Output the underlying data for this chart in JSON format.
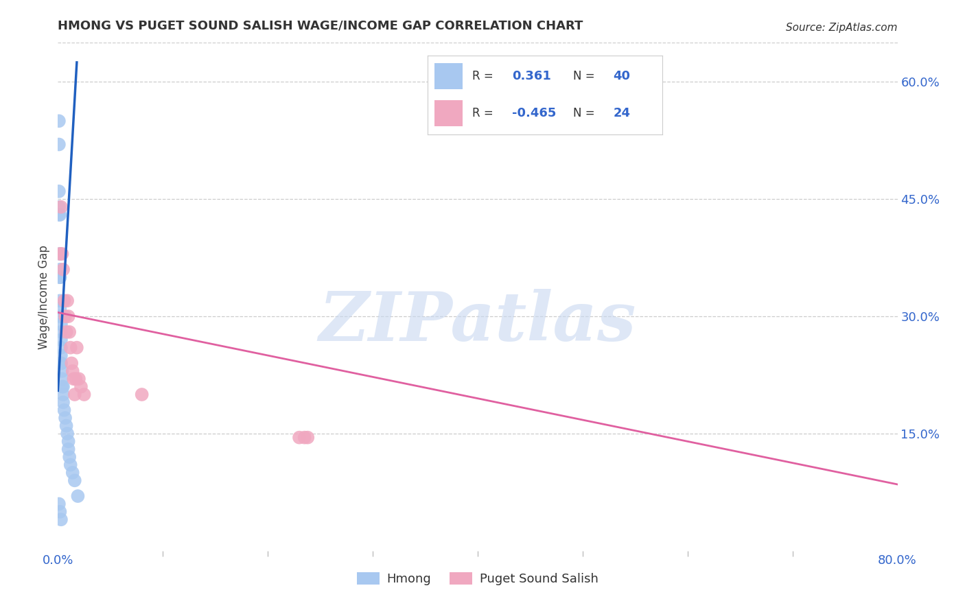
{
  "title": "HMONG VS PUGET SOUND SALISH WAGE/INCOME GAP CORRELATION CHART",
  "source": "Source: ZipAtlas.com",
  "ylabel": "Wage/Income Gap",
  "xlim": [
    0.0,
    0.8
  ],
  "ylim": [
    0.0,
    0.65
  ],
  "yticks_right": [
    0.15,
    0.3,
    0.45,
    0.6
  ],
  "ytick_right_labels": [
    "15.0%",
    "30.0%",
    "45.0%",
    "60.0%"
  ],
  "legend_r_hmong": "0.361",
  "legend_n_hmong": "40",
  "legend_r_salish": "-0.465",
  "legend_n_salish": "24",
  "hmong_color": "#a8c8f0",
  "salish_color": "#f0a8c0",
  "hmong_line_color": "#2060c0",
  "salish_line_color": "#e060a0",
  "watermark_color": "#c8d8f0",
  "background_color": "#ffffff",
  "grid_color": "#cccccc",
  "hmong_x": [
    0.001,
    0.001,
    0.001,
    0.001,
    0.001,
    0.002,
    0.002,
    0.002,
    0.002,
    0.002,
    0.002,
    0.002,
    0.002,
    0.003,
    0.003,
    0.003,
    0.003,
    0.003,
    0.003,
    0.003,
    0.004,
    0.004,
    0.004,
    0.005,
    0.005,
    0.005,
    0.006,
    0.007,
    0.008,
    0.009,
    0.01,
    0.01,
    0.011,
    0.012,
    0.014,
    0.016,
    0.019,
    0.001,
    0.002,
    0.003
  ],
  "hmong_y": [
    0.55,
    0.52,
    0.46,
    0.44,
    0.43,
    0.43,
    0.38,
    0.36,
    0.35,
    0.35,
    0.32,
    0.31,
    0.3,
    0.29,
    0.28,
    0.27,
    0.26,
    0.25,
    0.24,
    0.24,
    0.23,
    0.22,
    0.21,
    0.21,
    0.2,
    0.19,
    0.18,
    0.17,
    0.16,
    0.15,
    0.14,
    0.13,
    0.12,
    0.11,
    0.1,
    0.09,
    0.07,
    0.06,
    0.05,
    0.04
  ],
  "salish_x": [
    0.002,
    0.003,
    0.004,
    0.005,
    0.006,
    0.007,
    0.008,
    0.009,
    0.01,
    0.011,
    0.012,
    0.013,
    0.014,
    0.015,
    0.016,
    0.017,
    0.018,
    0.02,
    0.022,
    0.025,
    0.08,
    0.23,
    0.235,
    0.238
  ],
  "salish_y": [
    0.38,
    0.44,
    0.38,
    0.36,
    0.32,
    0.3,
    0.28,
    0.32,
    0.3,
    0.28,
    0.26,
    0.24,
    0.23,
    0.22,
    0.2,
    0.22,
    0.26,
    0.22,
    0.21,
    0.2,
    0.2,
    0.145,
    0.145,
    0.145
  ],
  "hmong_line_x": [
    0.0,
    0.018
  ],
  "hmong_line_y": [
    0.205,
    0.625
  ],
  "salish_line_x": [
    0.0,
    0.8
  ],
  "salish_line_y": [
    0.305,
    0.085
  ]
}
